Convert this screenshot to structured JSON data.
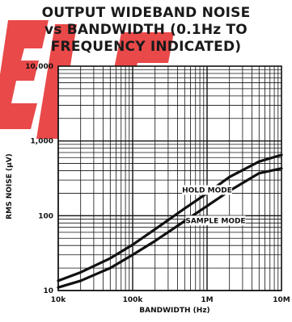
{
  "chart_data": {
    "type": "line",
    "title_lines": [
      "OUTPUT WIDEBAND NOISE",
      "vs BANDWIDTH (0.1Hz TO",
      "FREQUENCY INDICATED)"
    ],
    "xlabel": "BANDWIDTH (Hz)",
    "ylabel": "RMS NOISE (μV)",
    "x_scale": "log",
    "y_scale": "log",
    "xlim": [
      10000,
      10000000
    ],
    "ylim": [
      10,
      10000
    ],
    "x_ticks": [
      {
        "value": 10000,
        "label": "10k"
      },
      {
        "value": 100000,
        "label": "100k"
      },
      {
        "value": 1000000,
        "label": "1M"
      },
      {
        "value": 10000000,
        "label": "10M"
      }
    ],
    "y_ticks": [
      {
        "value": 10,
        "label": "10"
      },
      {
        "value": 100,
        "label": "100"
      },
      {
        "value": 1000,
        "label": "1,000"
      },
      {
        "value": 10000,
        "label": "10,000"
      }
    ],
    "grid": true,
    "series": [
      {
        "name": "HOLD MODE",
        "x": [
          10000,
          20000,
          50000,
          100000,
          200000,
          500000,
          1000000,
          2000000,
          5000000,
          10000000
        ],
        "y": [
          13.5,
          17.5,
          27,
          41,
          66,
          125,
          200,
          330,
          530,
          650
        ]
      },
      {
        "name": "SAMPLE MODE",
        "x": [
          10000,
          20000,
          50000,
          100000,
          200000,
          500000,
          1000000,
          2000000,
          5000000,
          10000000
        ],
        "y": [
          11,
          13.5,
          20,
          30,
          46,
          85,
          135,
          215,
          370,
          430
        ]
      }
    ],
    "annotations": [
      {
        "text": "HOLD MODE",
        "x": 1000000,
        "y": 205
      },
      {
        "text": "SAMPLE MODE",
        "x": 1300000,
        "y": 80
      }
    ]
  }
}
